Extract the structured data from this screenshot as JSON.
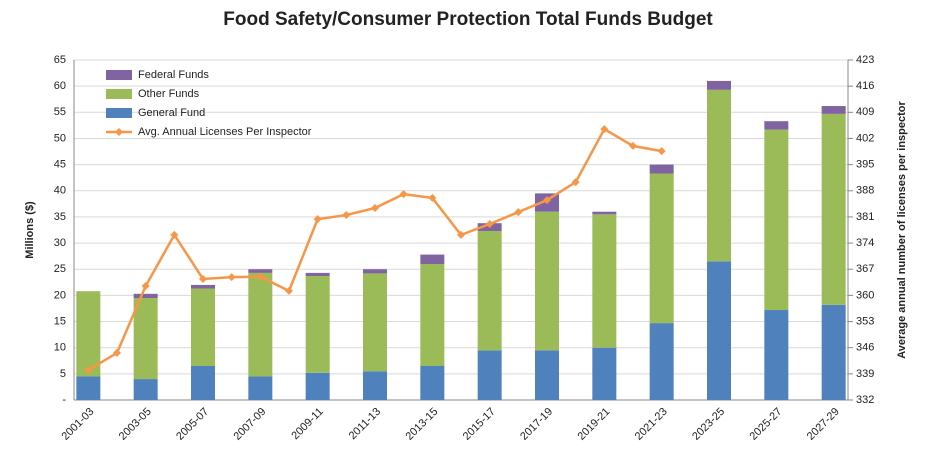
{
  "chart_data": {
    "type": "bar",
    "title": "Food Safety/Consumer Protection Total Funds Budget",
    "y_label": "Millions ($)",
    "y2_label": "Average annual number of licenses per inspector",
    "categories": [
      "2001-03",
      null,
      "2003-05",
      null,
      "2005-07",
      null,
      "2007-09",
      null,
      "2009-11",
      null,
      "2011-13",
      null,
      "2013-15",
      null,
      "2015-17",
      null,
      "2017-19",
      null,
      "2019-21",
      null,
      "2021-23",
      null,
      "2023-25",
      null,
      "2025-27",
      null,
      "2027-29"
    ],
    "series": [
      {
        "name": "General Fund",
        "color": "#4f81bd",
        "axis": "y",
        "values": [
          4.5,
          null,
          4,
          null,
          6.5,
          null,
          4.5,
          null,
          5.2,
          null,
          5.5,
          null,
          6.5,
          null,
          9.5,
          null,
          9.5,
          null,
          10,
          null,
          14.7,
          null,
          26.5,
          null,
          17.2,
          null,
          18.2
        ]
      },
      {
        "name": "Other Funds",
        "color": "#9bbb59",
        "axis": "y",
        "values": [
          16.3,
          null,
          15.5,
          null,
          14.8,
          null,
          19.8,
          null,
          18.5,
          null,
          18.7,
          null,
          19.5,
          null,
          22.8,
          null,
          26.5,
          null,
          25.5,
          null,
          28.6,
          null,
          32.8,
          null,
          34.5,
          null,
          36.5
        ]
      },
      {
        "name": "Federal Funds",
        "color": "#8064a2",
        "axis": "y",
        "values": [
          0,
          null,
          0.8,
          null,
          0.7,
          null,
          0.7,
          null,
          0.6,
          null,
          0.8,
          null,
          1.8,
          null,
          1.5,
          null,
          3.5,
          null,
          0.5,
          null,
          1.7,
          null,
          1.7,
          null,
          1.6,
          null,
          1.5
        ]
      },
      {
        "name": "Avg. Annual Licenses Per Inspector",
        "color": "#f79646",
        "axis": "y2",
        "type": "line",
        "values": [
          340,
          344.6,
          362.5,
          376.2,
          364.4,
          364.9,
          365,
          361.2,
          380.4,
          381.5,
          383.4,
          387.1,
          386.1,
          376.2,
          379.1,
          382.3,
          385.5,
          390.3,
          404.5,
          400,
          398.6,
          null,
          null,
          null,
          null,
          null,
          null
        ]
      }
    ],
    "legend_order": [
      2,
      1,
      0,
      3
    ],
    "legend": "upper left",
    "ylim": [
      0,
      65
    ],
    "yticks": [
      {
        "value": 0,
        "label": "-"
      },
      5,
      10,
      15,
      20,
      25,
      30,
      35,
      40,
      45,
      50,
      55,
      60,
      65
    ],
    "y2lim": [
      332,
      423
    ],
    "y2ticks": [
      332,
      339,
      346,
      353,
      360,
      367,
      374,
      381,
      388,
      395,
      402,
      409,
      416,
      423
    ],
    "grid": true
  }
}
